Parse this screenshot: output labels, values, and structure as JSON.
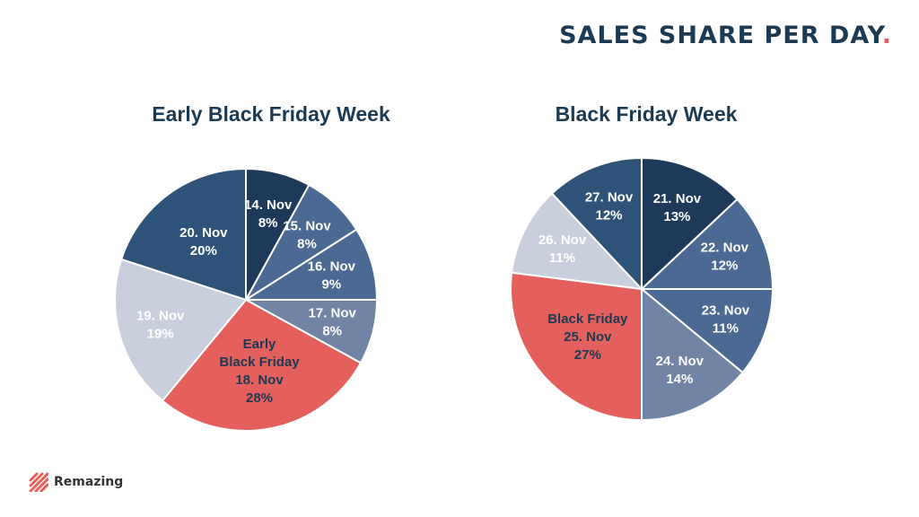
{
  "header": {
    "title": "SALES SHARE PER DAY",
    "title_dot": "."
  },
  "brand": {
    "name": "Remazing",
    "logo_color": "#e4605d"
  },
  "colors": {
    "title": "#1c3a52",
    "navy_dark": "#1e3a5a",
    "navy_mid": "#2d5478",
    "blue_mid": "#4a6a93",
    "blue_light": "#7184a5",
    "grey_light": "#c9cfdd",
    "red": "#e4605d"
  },
  "chart_data": [
    {
      "type": "pie",
      "title": "Early Black Friday Week",
      "start_angle_deg": 0,
      "direction": "clockwise",
      "slices": [
        {
          "date": "14. Nov",
          "pct_label": "8%",
          "value": 8,
          "color": "#1e3a5a",
          "text_color": "#ffffff"
        },
        {
          "date": "15. Nov",
          "pct_label": "8%",
          "value": 8,
          "color": "#4a6a93",
          "text_color": "#ffffff"
        },
        {
          "date": "16. Nov",
          "pct_label": "9%",
          "value": 9,
          "color": "#4a6a93",
          "text_color": "#ffffff"
        },
        {
          "date": "17. Nov",
          "pct_label": "8%",
          "value": 8,
          "color": "#7184a5",
          "text_color": "#ffffff"
        },
        {
          "extra": "Early",
          "extra2": "Black Friday",
          "date": "18. Nov",
          "pct_label": "28%",
          "value": 28,
          "color": "#e4605d",
          "text_color": "#1c3a52"
        },
        {
          "date": "19. Nov",
          "pct_label": "19%",
          "value": 19,
          "color": "#c9cfdd",
          "text_color": "#ffffff"
        },
        {
          "date": "20. Nov",
          "pct_label": "20%",
          "value": 20,
          "color": "#2d5478",
          "text_color": "#ffffff"
        }
      ]
    },
    {
      "type": "pie",
      "title": "Black Friday Week",
      "start_angle_deg": 0,
      "direction": "clockwise",
      "slices": [
        {
          "date": "21. Nov",
          "pct_label": "13%",
          "value": 13,
          "color": "#1e3a5a",
          "text_color": "#ffffff"
        },
        {
          "date": "22. Nov",
          "pct_label": "12%",
          "value": 12,
          "color": "#4a6a93",
          "text_color": "#ffffff"
        },
        {
          "date": "23. Nov",
          "pct_label": "11%",
          "value": 11,
          "color": "#4a6a93",
          "text_color": "#ffffff"
        },
        {
          "date": "24. Nov",
          "pct_label": "14%",
          "value": 14,
          "color": "#7184a5",
          "text_color": "#ffffff"
        },
        {
          "extra": "Black Friday",
          "date": "25. Nov",
          "pct_label": "27%",
          "value": 27,
          "color": "#e4605d",
          "text_color": "#1c3a52"
        },
        {
          "date": "26. Nov",
          "pct_label": "11%",
          "value": 11,
          "color": "#c9cfdd",
          "text_color": "#ffffff"
        },
        {
          "date": "27. Nov",
          "pct_label": "12%",
          "value": 12,
          "color": "#2d5478",
          "text_color": "#ffffff"
        }
      ]
    }
  ]
}
